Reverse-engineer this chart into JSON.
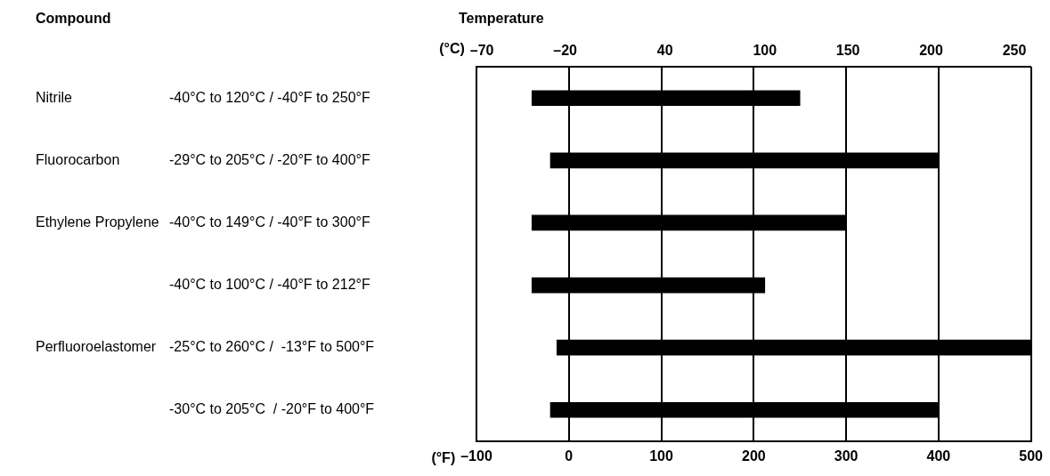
{
  "chart_data": {
    "type": "bar",
    "orientation": "horizontal",
    "title": "Temperature",
    "ylabel": "Compound",
    "xlabel": "(°F)",
    "x2label": "(°C)",
    "categories": [
      "Nitrile\t-40°C to 120°C / -40°F to 250°F",
      "Fluorocarbon\t-29°C to 205°C / -20°F to 400°F",
      "Ethylene Propylene\t-40°C to 149°C / -40°F to 300°F",
      "\t-40°C to 100°C / -40°F to 212°F",
      "Perfluoroelastomer\t-25°C to 260°C /  -13°F to 500°F",
      "\t-30°C to 205°C  / -20°F to 400°F"
    ],
    "base": [
      -40,
      -20,
      -40,
      -40,
      -13,
      -20
    ],
    "values": [
      290,
      420,
      340,
      252,
      513,
      420
    ],
    "color": "#000000",
    "xlim": [
      -100,
      500
    ],
    "xticks": [
      {
        "value": -100,
        "label": "–100"
      },
      0,
      100,
      200,
      300,
      400,
      500
    ],
    "x2lim": [
      -73.3,
      260
    ],
    "x2ticks": [
      {
        "value": -70,
        "label": "–70"
      },
      {
        "value": -20,
        "label": "–20"
      },
      40,
      100,
      150,
      200,
      250
    ],
    "grid": "x",
    "legend": false
  }
}
